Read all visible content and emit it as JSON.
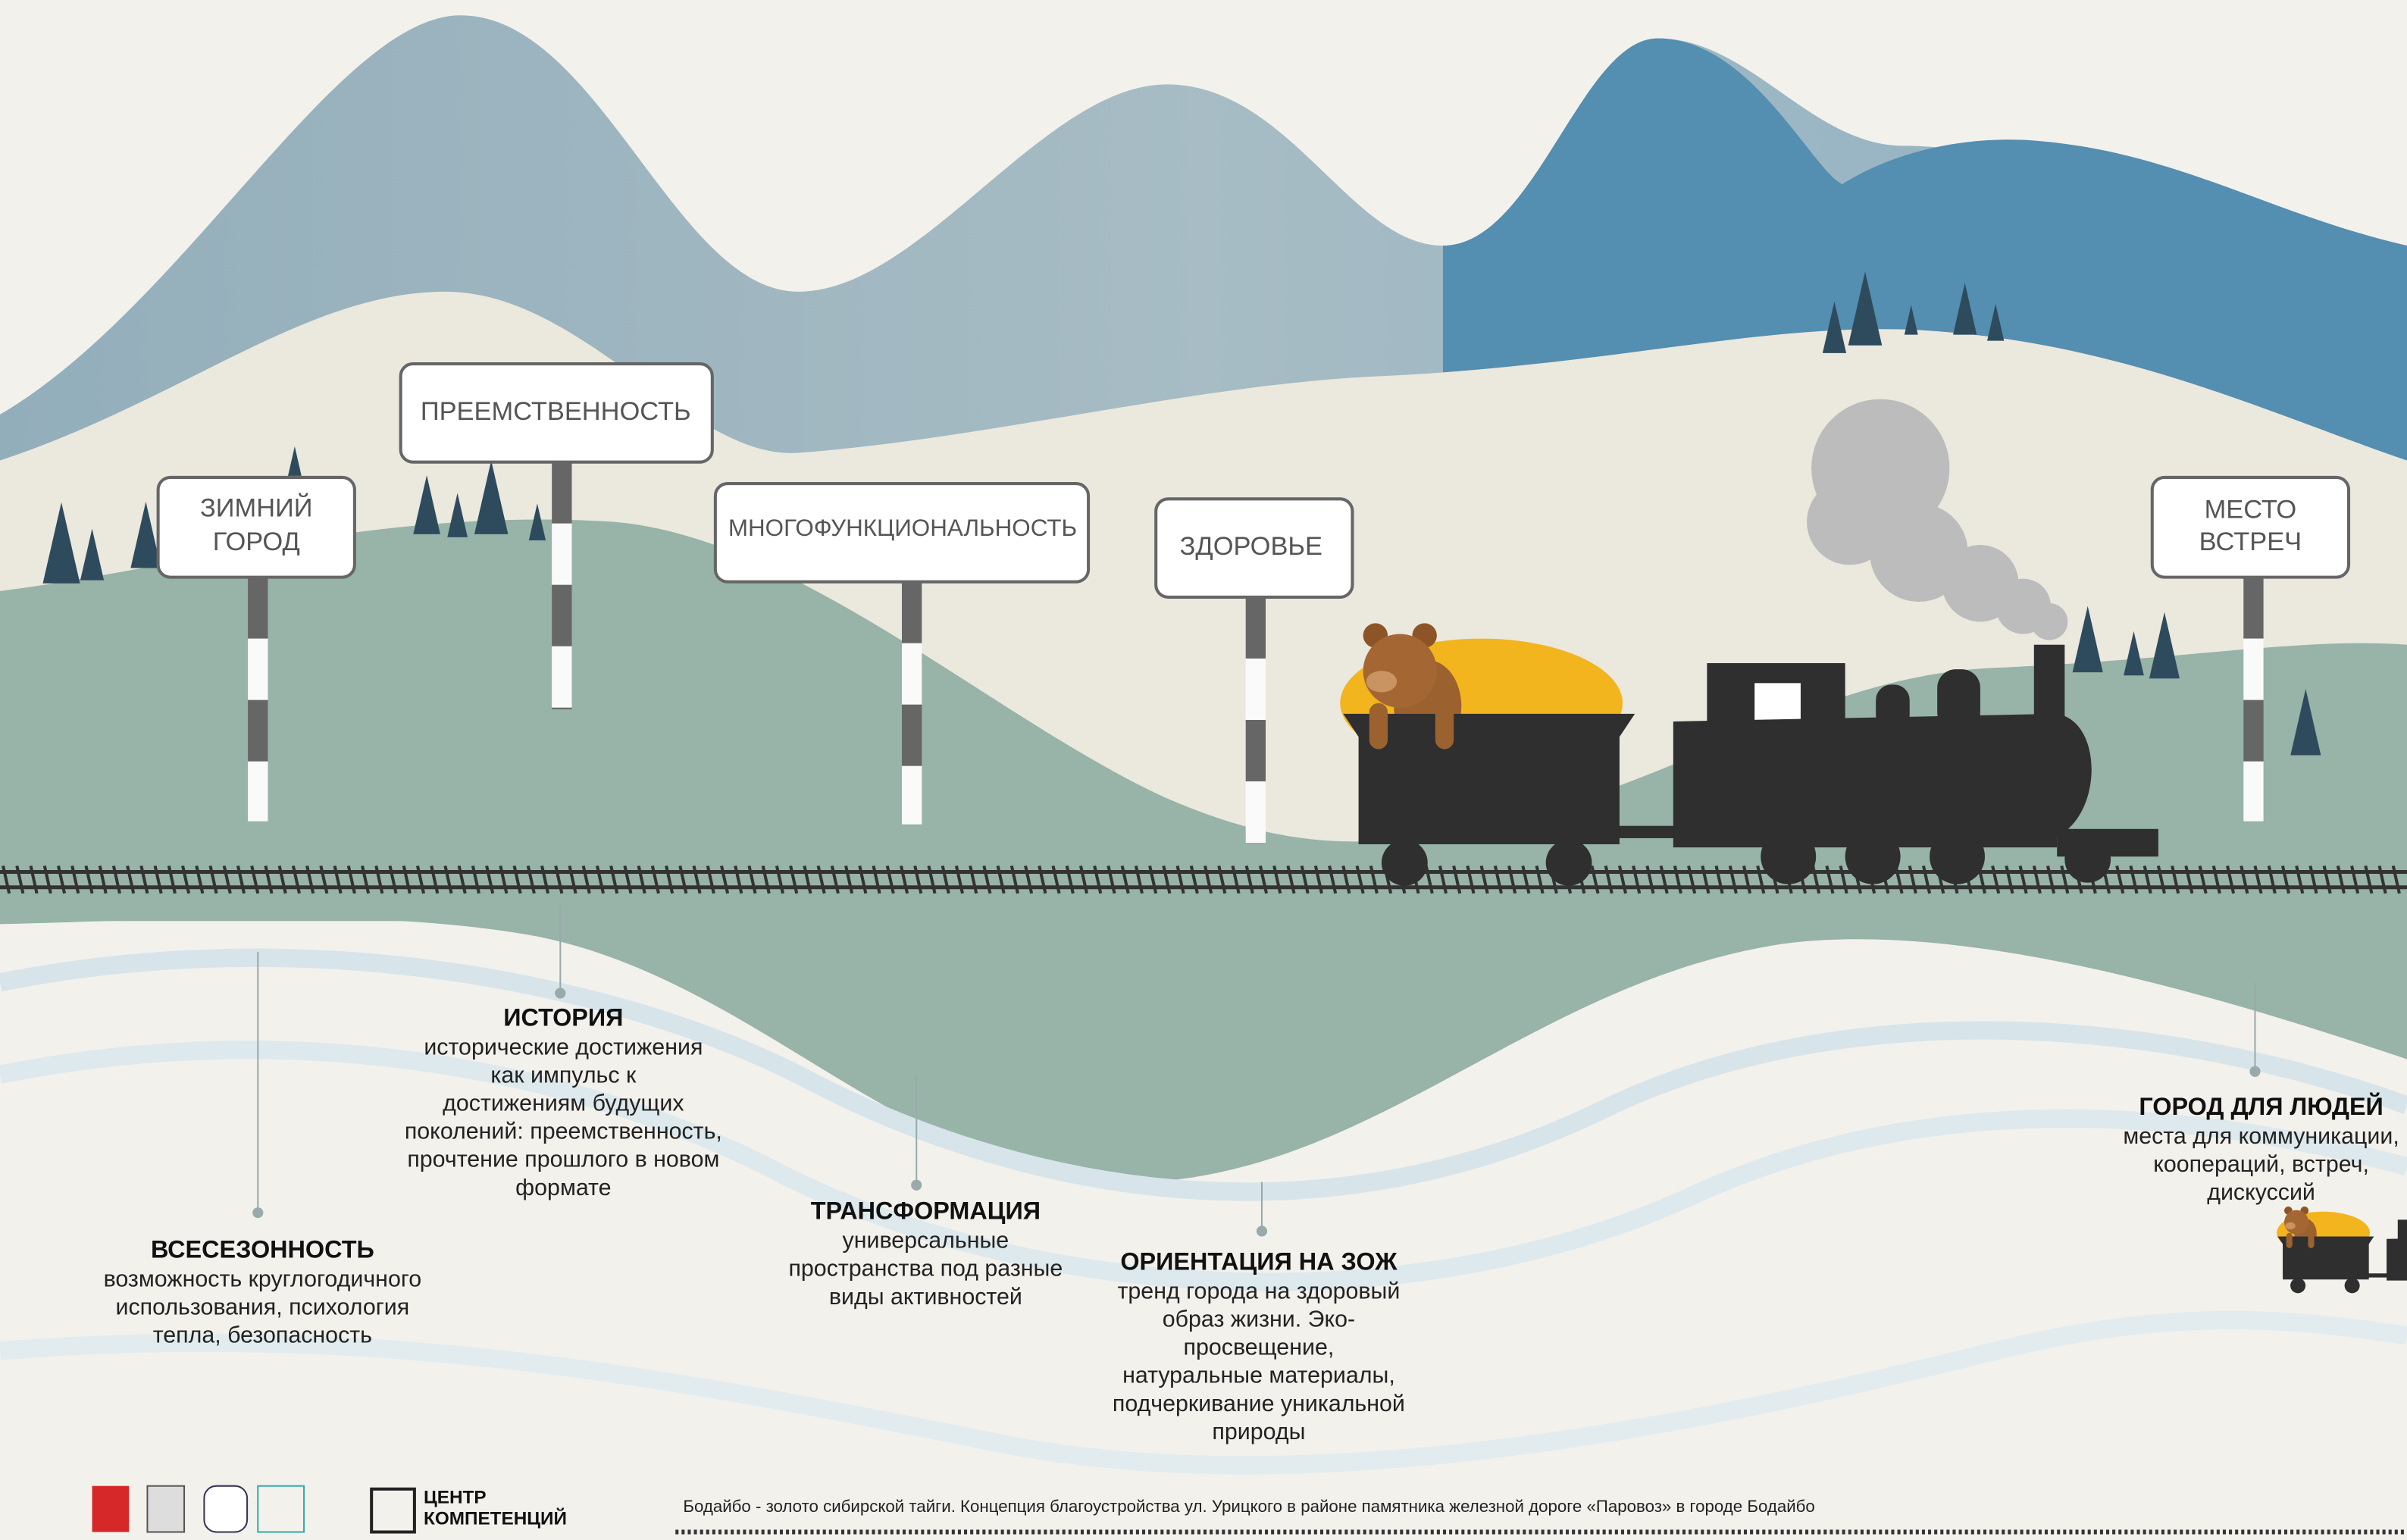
{
  "signs": [
    {
      "lines": [
        "ЗИМНИЙ",
        "ГОРОД"
      ]
    },
    {
      "lines": [
        "ПРЕЕМСТВЕННОСТЬ"
      ]
    },
    {
      "lines": [
        "МНОГОФУНКЦИОНАЛЬНОСТЬ"
      ]
    },
    {
      "lines": [
        "ЗДОРОВЬЕ"
      ]
    },
    {
      "lines": [
        "МЕСТО",
        "ВСТРЕЧ"
      ]
    }
  ],
  "principles": [
    {
      "title": "ВСЕСЕЗОННОСТЬ",
      "lines": [
        "возможность круглогодичного",
        "использования, психология",
        "тепла, безопасность"
      ]
    },
    {
      "title": "ИСТОРИЯ",
      "lines": [
        "исторические достижения",
        "как импульс к",
        "достижениям будущих",
        "поколений: преемственность,",
        "прочтение прошлого в новом",
        "формате"
      ]
    },
    {
      "title": "ТРАНСФОРМАЦИЯ",
      "lines": [
        "универсальные",
        "пространства под разные",
        "виды активностей"
      ]
    },
    {
      "title": "ОРИЕНТАЦИЯ НА ЗОЖ",
      "lines": [
        "тренд города на здоровый",
        "образ жизни. Эко-",
        "просвещение,",
        "натуральные материалы,",
        "подчеркивание уникальной",
        "природы"
      ]
    },
    {
      "title": "ГОРОД ДЛЯ ЛЮДЕЙ",
      "lines": [
        "места для коммуникации,",
        "коопераций, встреч,",
        "дискуссий"
      ]
    }
  ],
  "footer": {
    "caption": "Бодайбо - золото сибирской тайги. Концепция благоустройства  ул. Урицкого в районе памятника железной дороге «Паровоз» в городе Бодайбо",
    "logo_text": [
      "ЦЕНТР",
      "КОМПЕТЕНЦИЙ"
    ]
  }
}
